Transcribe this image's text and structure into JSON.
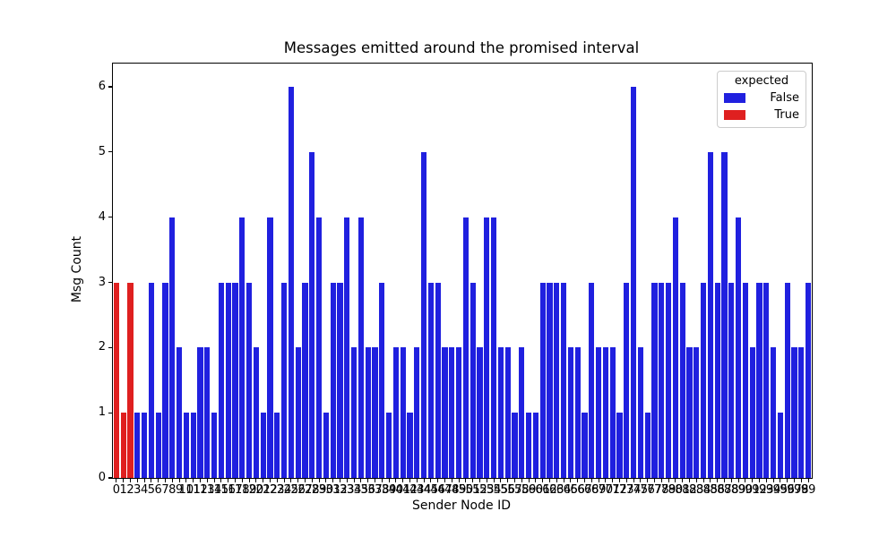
{
  "chart_data": {
    "type": "bar",
    "title": "Messages emitted around the promised interval",
    "xlabel": "Sender Node ID",
    "ylabel": "Msg Count",
    "yticks": [
      0,
      1,
      2,
      3,
      4,
      5,
      6
    ],
    "ylim": [
      0,
      6.36
    ],
    "grid": false,
    "legend": {
      "title": "expected",
      "position": "upper right",
      "entries": [
        {
          "label": "False",
          "color": "#2020df"
        },
        {
          "label": "True",
          "color": "#df2020"
        }
      ]
    },
    "categories": [
      0,
      1,
      2,
      3,
      4,
      5,
      6,
      7,
      8,
      9,
      10,
      11,
      12,
      13,
      14,
      15,
      16,
      17,
      18,
      19,
      20,
      21,
      22,
      23,
      24,
      25,
      26,
      27,
      28,
      29,
      30,
      31,
      32,
      33,
      34,
      35,
      36,
      37,
      38,
      39,
      40,
      41,
      42,
      43,
      44,
      45,
      46,
      47,
      48,
      49,
      50,
      51,
      52,
      53,
      54,
      55,
      56,
      57,
      58,
      59,
      60,
      61,
      62,
      63,
      64,
      65,
      66,
      67,
      68,
      69,
      70,
      71,
      72,
      73,
      74,
      75,
      76,
      77,
      78,
      79,
      80,
      81,
      82,
      83,
      84,
      85,
      86,
      87,
      88,
      89,
      90,
      91,
      92,
      93,
      94,
      95,
      96,
      97,
      98,
      99
    ],
    "values": [
      3,
      1,
      3,
      1,
      1,
      3,
      1,
      3,
      4,
      2,
      1,
      1,
      2,
      2,
      1,
      3,
      3,
      3,
      4,
      3,
      2,
      1,
      4,
      1,
      3,
      6,
      2,
      3,
      5,
      4,
      1,
      3,
      3,
      4,
      2,
      4,
      2,
      2,
      3,
      1,
      2,
      2,
      1,
      2,
      5,
      3,
      3,
      2,
      2,
      2,
      4,
      3,
      2,
      4,
      4,
      2,
      2,
      1,
      2,
      1,
      1,
      3,
      3,
      3,
      3,
      2,
      2,
      1,
      3,
      2,
      2,
      2,
      1,
      3,
      6,
      2,
      1,
      3,
      3,
      3,
      4,
      3,
      2,
      2,
      3,
      5,
      3,
      5,
      3,
      4,
      3,
      2,
      3,
      3,
      2,
      1,
      3,
      2,
      2,
      3
    ],
    "expected_true_categories": [
      0,
      1,
      2
    ]
  }
}
